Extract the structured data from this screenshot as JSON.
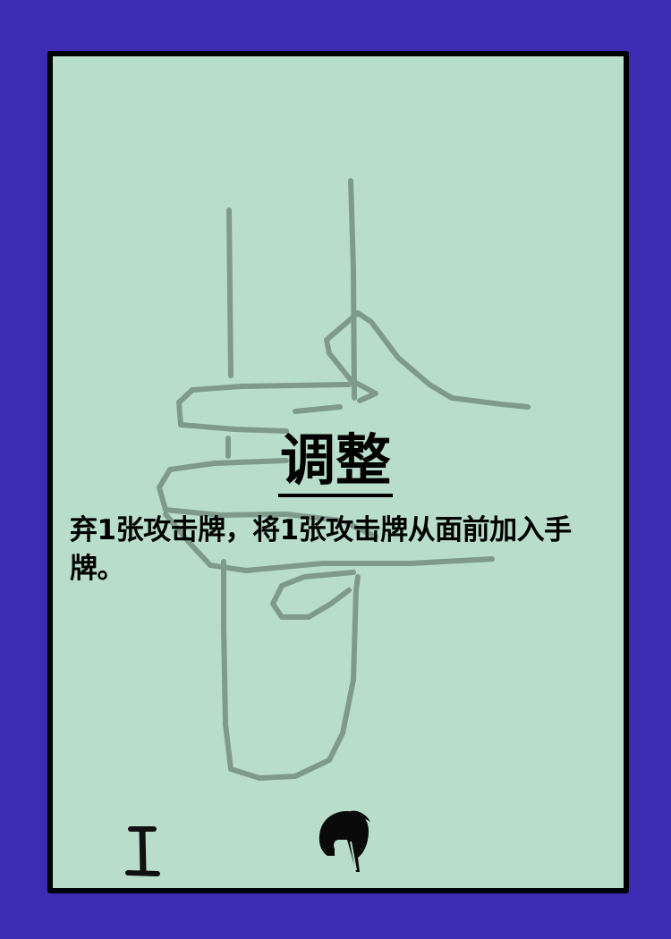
{
  "card": {
    "title": "调整",
    "description": "弃1张攻击牌，将1张攻击牌从面前加入手牌。",
    "level_icon": "roman-numeral-one-icon",
    "faction_icon": "spartan-helmet-icon"
  },
  "colors": {
    "background": "#3c2bb3",
    "card_face": "#b8decb",
    "border": "#000000",
    "sketch": "#7f9a8a"
  }
}
